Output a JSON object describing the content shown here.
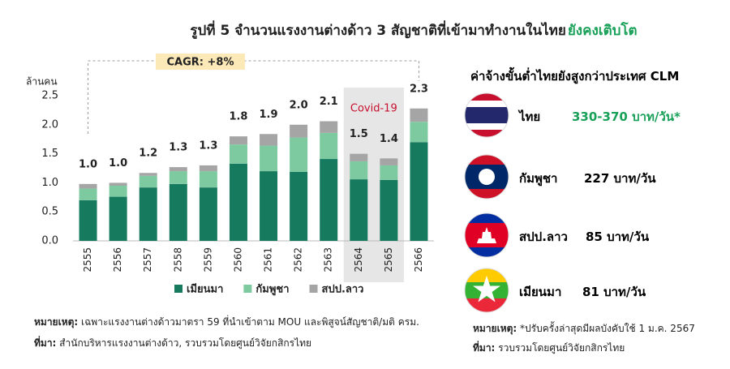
{
  "chart_data": {
    "type": "stacked-bar",
    "title": "รูปที่ 5 จำนวนแรงงานต่างด้าว 3 สัญชาติที่เข้ามาทำงานในไทย",
    "title_highlight": "ยังคงเติบโต",
    "y_label": "ล้านคน",
    "cagr_label": "CAGR: +8%",
    "covid_label": "Covid-19",
    "covid_categories": [
      "2564",
      "2565"
    ],
    "categories": [
      "2555",
      "2556",
      "2557",
      "2558",
      "2559",
      "2560",
      "2561",
      "2562",
      "2563",
      "2564",
      "2565",
      "2566"
    ],
    "series": [
      {
        "name": "เมียนมา",
        "color": "#167a5f",
        "values": [
          0.7,
          0.76,
          0.92,
          0.98,
          0.92,
          1.33,
          1.2,
          1.19,
          1.41,
          1.06,
          1.05,
          1.7
        ]
      },
      {
        "name": "กัมพูชา",
        "color": "#7dcaa0",
        "values": [
          0.2,
          0.19,
          0.2,
          0.22,
          0.28,
          0.33,
          0.44,
          0.59,
          0.45,
          0.31,
          0.25,
          0.35
        ]
      },
      {
        "name": "สปป.ลาว",
        "color": "#a5a5a5",
        "values": [
          0.08,
          0.05,
          0.05,
          0.07,
          0.1,
          0.14,
          0.2,
          0.22,
          0.2,
          0.13,
          0.12,
          0.23
        ]
      }
    ],
    "total_labels": [
      "1.0",
      "1.0",
      "1.2",
      "1.3",
      "1.3",
      "1.8",
      "1.9",
      "2.0",
      "2.1",
      "1.5",
      "1.4",
      "2.3"
    ],
    "ylim": [
      0,
      2.5
    ],
    "yticks": [
      {
        "value": 0,
        "label": "0.0"
      },
      {
        "value": 0.5,
        "label": "0.5"
      },
      {
        "value": 1,
        "label": "1.0"
      },
      {
        "value": 1.5,
        "label": "1.5"
      },
      {
        "value": 2,
        "label": "2.0"
      },
      {
        "value": 2.5,
        "label": "2.5"
      }
    ],
    "grid": false
  },
  "panel": {
    "title": "ค่าจ้างขั้นต่ำไทยยังสูงกว่าประเทศ CLM",
    "rows": [
      {
        "country": "ไทย",
        "wage": "330-370 บาท/วัน*"
      },
      {
        "country": "กัมพูชา",
        "wage": "227 บาท/วัน"
      },
      {
        "country": "สปป.ลาว",
        "wage": "85 บาท/วัน"
      },
      {
        "country": "เมียนมา",
        "wage": "81 บาท/วัน"
      }
    ]
  },
  "notes": {
    "left_note_label": "หมายเหตุ:",
    "left_note": " เฉพาะแรงงานต่างด้าวมาตรา 59 ที่นำเข้าตาม MOU และพิสูจน์สัญชาติ/มติ ครม.",
    "left_source_label": "ที่มา:",
    "left_source": " สำนักบริหารแรงงานต่างด้าว, รวบรวมโดยศูนย์วิจัยกสิกรไทย",
    "right_note_label": "หมายเหตุ:",
    "right_note": " *ปรับครั้งล่าสุดมีผลบังคับใช้ 1 ม.ค. 2567",
    "right_source_label": "ที่มา:",
    "right_source": " รวบรวมโดยศูนย์วิจัยกสิกรไทย"
  }
}
